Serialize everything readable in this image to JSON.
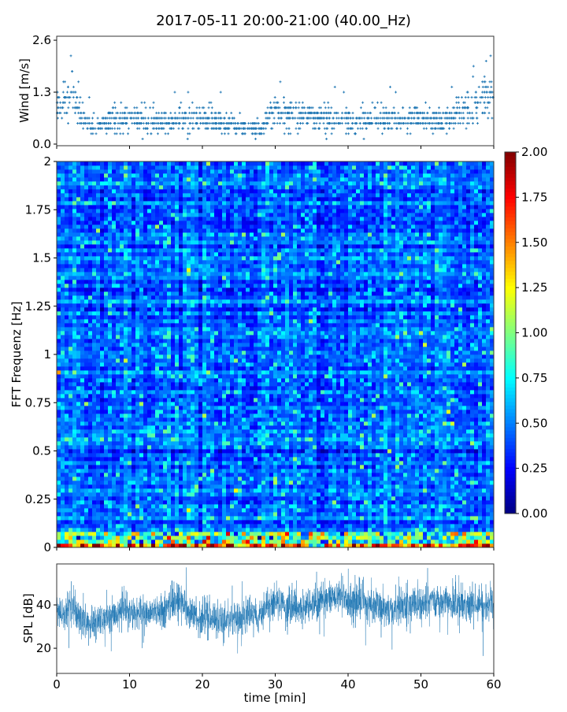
{
  "chart_data": [
    {
      "type": "scatter",
      "panel": "wind",
      "title": "2017-05-11 20:00-21:00 (40.00_Hz)",
      "xlabel": "",
      "ylabel": "Wind [m/s]",
      "xlim": [
        0,
        60
      ],
      "ylim": [
        -0.04,
        2.7
      ],
      "yticks": [
        "0.0",
        "1.3",
        "2.6"
      ],
      "xticks": [
        0,
        10,
        20,
        30,
        40,
        50,
        60
      ],
      "marker": "+",
      "color": "#1f77b4",
      "resolution": 0.13,
      "minute_mean": [
        0.7,
        1.1,
        1.3,
        0.9,
        0.5,
        0.5,
        0.5,
        0.6,
        0.6,
        0.6,
        0.6,
        0.6,
        0.6,
        0.5,
        0.6,
        0.6,
        0.6,
        0.7,
        0.6,
        0.6,
        0.6,
        0.6,
        0.6,
        0.5,
        0.5,
        0.4,
        0.4,
        0.4,
        0.4,
        0.6,
        0.8,
        0.8,
        0.7,
        0.7,
        0.7,
        0.7,
        0.7,
        0.7,
        0.6,
        0.6,
        0.6,
        0.5,
        0.6,
        0.6,
        0.6,
        0.6,
        0.6,
        0.6,
        0.6,
        0.7,
        0.6,
        0.6,
        0.6,
        0.6,
        0.6,
        0.8,
        0.9,
        0.8,
        1.1,
        1.2,
        1.2
      ]
    },
    {
      "type": "heatmap",
      "panel": "spectrogram",
      "ylabel": "FFT Frequenz [Hz]",
      "xlim": [
        0,
        60
      ],
      "ylim": [
        0,
        2
      ],
      "yticks": [
        "0",
        "0.25",
        "0.5",
        "0.75",
        "1",
        "1.25",
        "1.5",
        "1.75",
        "2"
      ],
      "colormap": "jet",
      "clim": [
        0,
        2
      ],
      "colorbar_ticks": [
        "0.00",
        "0.25",
        "0.50",
        "0.75",
        "1.00",
        "1.25",
        "1.50",
        "1.75",
        "2.00"
      ],
      "typical_value": 0.4,
      "lowest_bin_value": 1.5
    },
    {
      "type": "line",
      "panel": "spl",
      "xlabel": "time [min]",
      "ylabel": "SPL [dB]",
      "xlim": [
        0,
        60
      ],
      "ylim": [
        8.4,
        58.9
      ],
      "yticks": [
        "20",
        "40"
      ],
      "xticks": [
        "0",
        "10",
        "20",
        "30",
        "40",
        "50",
        "60"
      ],
      "color": "#1f77b4",
      "minute_mean": [
        37,
        35,
        40,
        34,
        31,
        31,
        33,
        34,
        35,
        38,
        37,
        36,
        36,
        36,
        37,
        38,
        40,
        42,
        36,
        35,
        34,
        34,
        33,
        34,
        34,
        34,
        35,
        35,
        36,
        41,
        41,
        40,
        39,
        38,
        39,
        40,
        42,
        43,
        45,
        43,
        42,
        41,
        42,
        41,
        40,
        37,
        38,
        39,
        40,
        41,
        40,
        41,
        42,
        42,
        41,
        40,
        40,
        39,
        41,
        40,
        40
      ]
    }
  ]
}
